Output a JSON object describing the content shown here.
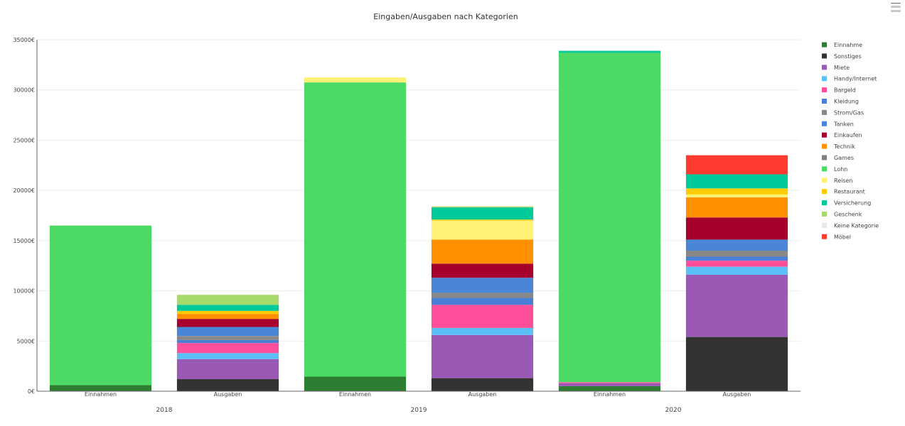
{
  "chart_data": {
    "type": "bar",
    "stacked": true,
    "title": "Eingaben/Ausgaben nach Kategorien",
    "ylim": [
      0,
      35000
    ],
    "y_ticks": [
      0,
      5000,
      10000,
      15000,
      20000,
      25000,
      30000,
      35000
    ],
    "y_tick_labels": [
      "0€",
      "5000€",
      "10000€",
      "15000€",
      "20000€",
      "25000€",
      "30000€",
      "35000€"
    ],
    "groups": [
      {
        "label": "2018",
        "categories": [
          "Einnahmen",
          "Ausgaben"
        ]
      },
      {
        "label": "2019",
        "categories": [
          "Einnahmen",
          "Ausgaben"
        ]
      },
      {
        "label": "2020",
        "categories": [
          "Einnahmen",
          "Ausgaben"
        ]
      }
    ],
    "legend_position": "right",
    "grid": true,
    "series": [
      {
        "name": "Einnahme",
        "color": "#2e7d32",
        "values": [
          600,
          0,
          1450,
          0,
          500,
          0
        ]
      },
      {
        "name": "Sonstiges",
        "color": "#333333",
        "values": [
          0,
          1200,
          0,
          1300,
          0,
          5400
        ]
      },
      {
        "name": "Miete",
        "color": "#9b59b6",
        "values": [
          0,
          2000,
          0,
          4300,
          300,
          6200
        ]
      },
      {
        "name": "Handy/Internet",
        "color": "#5bc0f8",
        "values": [
          0,
          600,
          0,
          700,
          0,
          800
        ]
      },
      {
        "name": "Bargeld",
        "color": "#ff4f9a",
        "values": [
          0,
          1000,
          0,
          2300,
          100,
          600
        ]
      },
      {
        "name": "Kleidung",
        "color": "#4a7fd6",
        "values": [
          0,
          300,
          0,
          700,
          0,
          400
        ]
      },
      {
        "name": "Strom/Gas",
        "color": "#888888",
        "values": [
          0,
          400,
          0,
          500,
          0,
          600
        ]
      },
      {
        "name": "Tanken",
        "color": "#4a86d8",
        "values": [
          0,
          900,
          0,
          1500,
          0,
          1100
        ]
      },
      {
        "name": "Einkaufen",
        "color": "#a6002c",
        "values": [
          0,
          800,
          0,
          1400,
          0,
          2200
        ]
      },
      {
        "name": "Technik",
        "color": "#ff9100",
        "values": [
          0,
          500,
          0,
          2400,
          0,
          2000
        ]
      },
      {
        "name": "Games",
        "color": "#7f7f7f",
        "values": [
          0,
          0,
          0,
          0,
          0,
          0
        ]
      },
      {
        "name": "Lohn",
        "color": "#4cd964",
        "values": [
          15900,
          0,
          29300,
          0,
          32800,
          0
        ]
      },
      {
        "name": "Reisen",
        "color": "#fff176",
        "values": [
          0,
          0,
          500,
          1900,
          0,
          300
        ]
      },
      {
        "name": "Restaurant",
        "color": "#ffcc00",
        "values": [
          0,
          300,
          0,
          100,
          0,
          600
        ]
      },
      {
        "name": "Versicherung",
        "color": "#00c99a",
        "values": [
          0,
          600,
          0,
          1200,
          200,
          1400
        ]
      },
      {
        "name": "Geschenk",
        "color": "#a8d96b",
        "values": [
          0,
          1000,
          0,
          100,
          0,
          0
        ]
      },
      {
        "name": "Keine Kategorie",
        "color": "#e8e8e8",
        "values": [
          0,
          0,
          0,
          0,
          0,
          0
        ]
      },
      {
        "name": "Möbel",
        "color": "#ff3b30",
        "values": [
          0,
          0,
          0,
          0,
          0,
          1900
        ]
      }
    ]
  }
}
